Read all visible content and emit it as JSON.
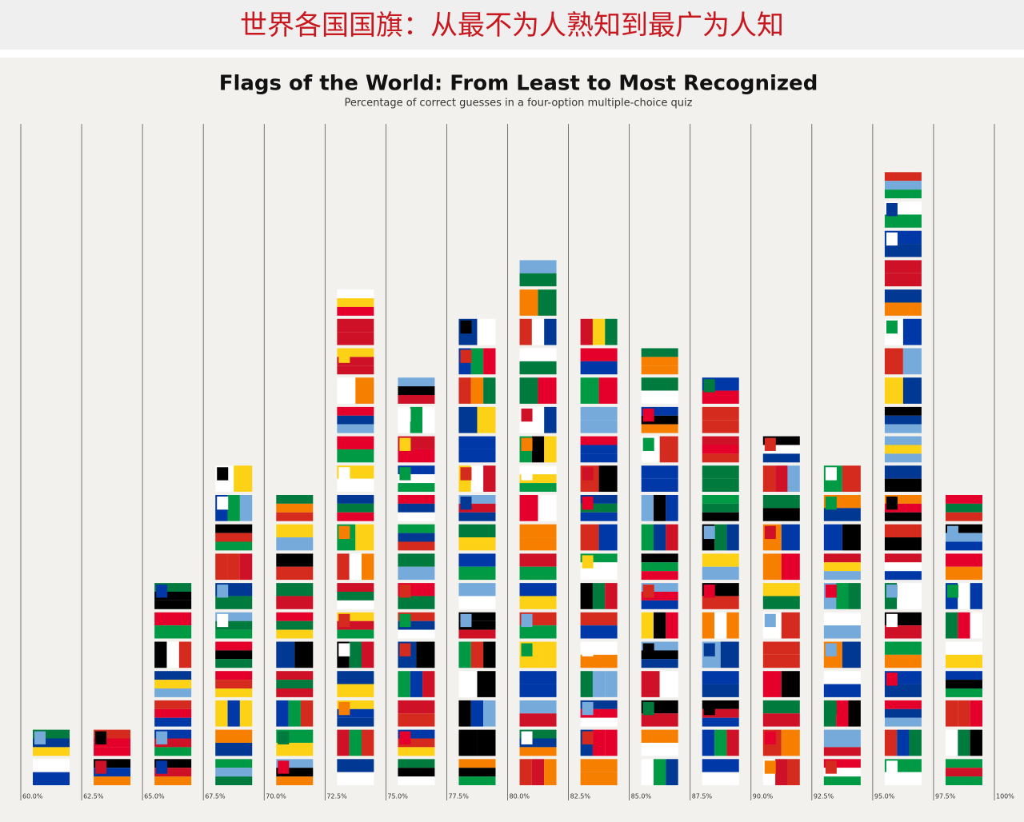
{
  "header": {
    "title": "世界各国国旗：从最不为人熟知到最广为人知"
  },
  "chart_data": {
    "type": "flag-stack",
    "title": "Flags of the World: From Least to Most Recognized",
    "subtitle": "Percentage of correct guesses in a four-option multiple-choice quiz",
    "x": [
      60,
      62.5,
      65,
      67.5,
      70,
      72.5,
      75,
      77.5,
      80,
      82.5,
      85,
      87.5,
      90,
      92.5,
      95,
      97.5
    ],
    "values": [
      2,
      2,
      7,
      11,
      10,
      17,
      14,
      16,
      18,
      16,
      15,
      14,
      12,
      11,
      21,
      10
    ],
    "xlim": [
      60,
      100
    ],
    "xticks": [
      {
        "value": 60,
        "label": "60.0%"
      },
      {
        "value": 62.5,
        "label": "62.5%"
      },
      {
        "value": 65,
        "label": "65.0%"
      },
      {
        "value": 67.5,
        "label": "67.5%"
      },
      {
        "value": 70,
        "label": "70.0%"
      },
      {
        "value": 72.5,
        "label": "72.5%"
      },
      {
        "value": 75,
        "label": "75.0%"
      },
      {
        "value": 77.5,
        "label": "77.5%"
      },
      {
        "value": 80,
        "label": "80.0%"
      },
      {
        "value": 82.5,
        "label": "82.5%"
      },
      {
        "value": 85,
        "label": "85.0%"
      },
      {
        "value": 87.5,
        "label": "87.5%"
      },
      {
        "value": 90,
        "label": "90.0%"
      },
      {
        "value": 92.5,
        "label": "92.5%"
      },
      {
        "value": 95,
        "label": "95.0%"
      },
      {
        "value": 97.5,
        "label": "97.5%"
      },
      {
        "value": 100,
        "label": "100%"
      }
    ]
  }
}
